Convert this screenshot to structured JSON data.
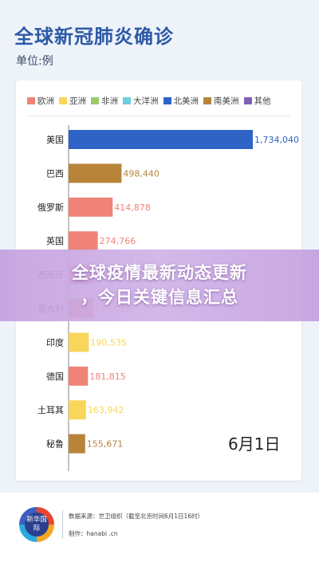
{
  "header": {
    "title": "全球新冠肺炎确诊",
    "unit": "单位:例"
  },
  "legend": [
    {
      "label": "欧洲",
      "color": "#ef8378"
    },
    {
      "label": "亚洲",
      "color": "#f9d65a"
    },
    {
      "label": "非洲",
      "color": "#9cc96b"
    },
    {
      "label": "大洋洲",
      "color": "#6ecde0"
    },
    {
      "label": "北美洲",
      "color": "#2f63c6"
    },
    {
      "label": "南美洲",
      "color": "#b7843a"
    },
    {
      "label": "其他",
      "color": "#7f62b8"
    }
  ],
  "chart_data": {
    "type": "bar",
    "orientation": "horizontal",
    "categories": [
      "美国",
      "巴西",
      "俄罗斯",
      "英国",
      "西班牙",
      "意大利",
      "印度",
      "德国",
      "土耳其",
      "秘鲁"
    ],
    "values": [
      1734040,
      498440,
      414878,
      274766,
      239638,
      233019,
      190535,
      181815,
      163942,
      155671
    ],
    "value_labels": [
      "1,734,040",
      "498,440",
      "414,878",
      "274,766",
      "",
      "233,019",
      "190,535",
      "181,815",
      "163,942",
      "155,671"
    ],
    "regions": [
      "北美洲",
      "南美洲",
      "欧洲",
      "欧洲",
      "欧洲",
      "欧洲",
      "亚洲",
      "欧洲",
      "亚洲",
      "南美洲"
    ],
    "legend_position": "top",
    "grid": false
  },
  "date_label": "6月1日",
  "overlay": {
    "line1": "全球疫情最新动态更新",
    "line2": "，今日关键信息汇总"
  },
  "footer": {
    "logo_text": "新华国际",
    "source": "数据来源：世卫组织（截至北京时间6月1日16时）",
    "maker": "制作：hanabi .cn"
  }
}
